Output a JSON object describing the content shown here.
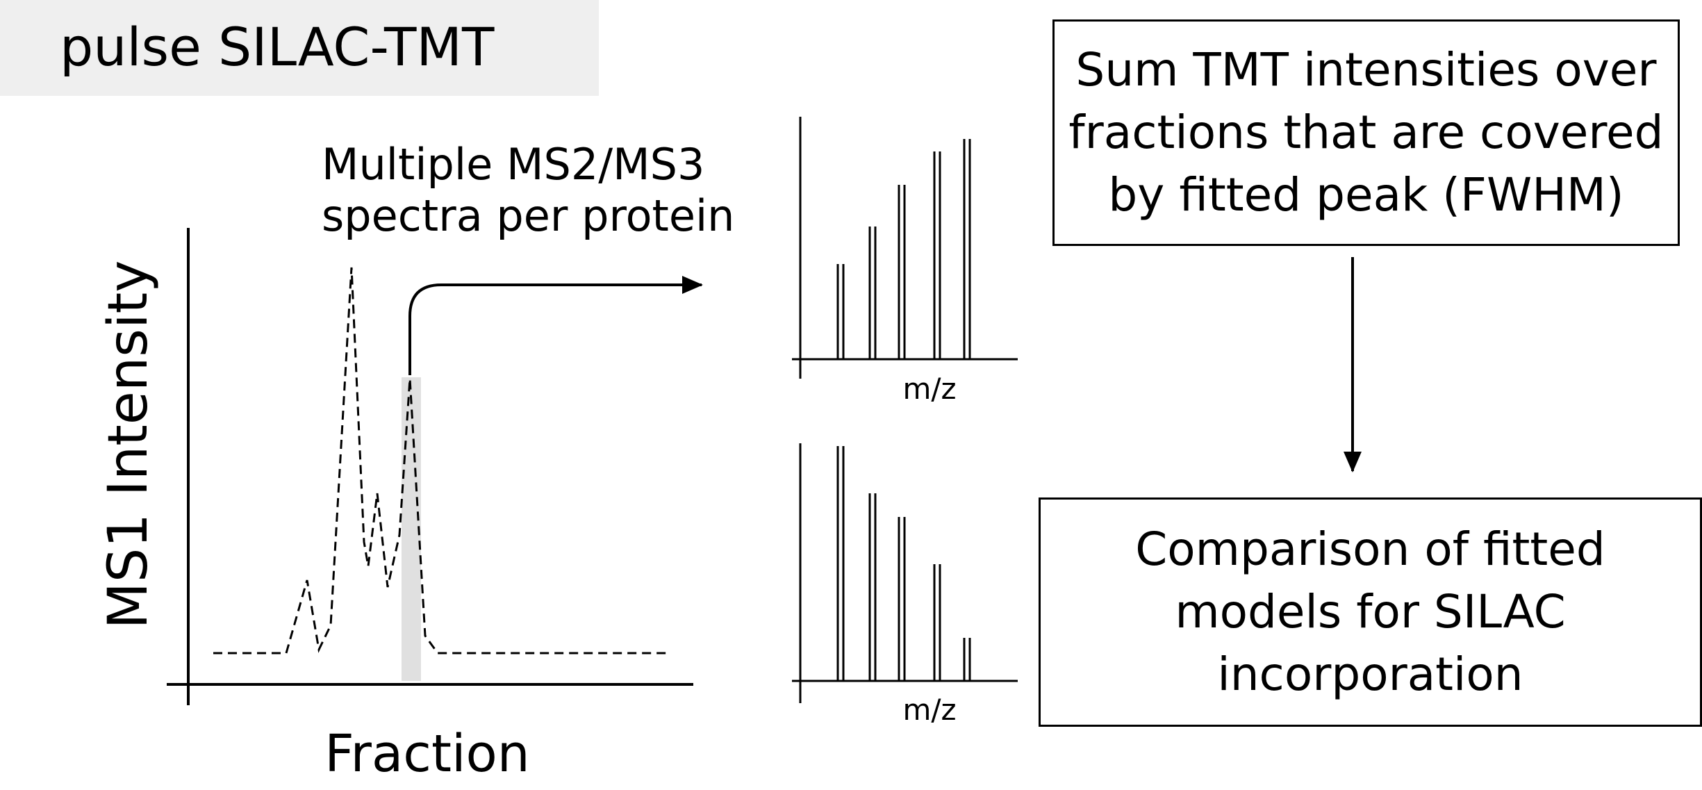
{
  "title": "pulse SILAC-TMT",
  "spectra_label": [
    "Multiple MS2/MS3",
    "spectra per protein"
  ],
  "y_axis_label": "MS1 Intensity",
  "x_axis_label": "Fraction",
  "spectrum_axis_label": "m/z",
  "box_sum": [
    "Sum TMT intensities over",
    "fractions that are covered",
    "by fitted peak (FWHM)"
  ],
  "box_comparison": [
    "Comparison of fitted",
    "models for SILAC",
    "incorporation"
  ],
  "colors": {
    "highlight": "#e0e0e0",
    "title_background": "#efefef"
  }
}
